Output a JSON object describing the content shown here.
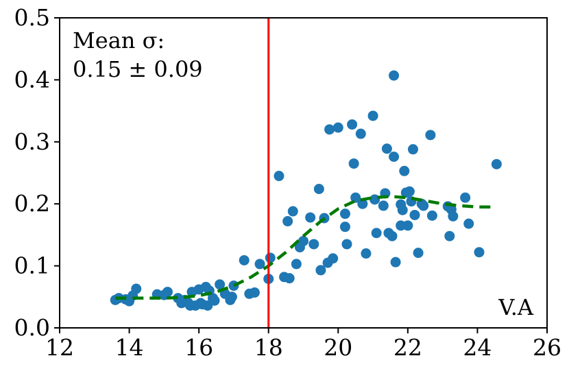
{
  "chart_data": {
    "type": "scatter",
    "title": "",
    "xlabel": "",
    "ylabel": "",
    "xlim": [
      12,
      26
    ],
    "ylim": [
      0.0,
      0.5
    ],
    "x_ticks": [
      12,
      14,
      16,
      18,
      20,
      22,
      24,
      26
    ],
    "x_tick_labels": [
      "12",
      "14",
      "16",
      "18",
      "20",
      "22",
      "24",
      "26"
    ],
    "y_ticks": [
      0.0,
      0.1,
      0.2,
      0.3,
      0.4,
      0.5
    ],
    "y_tick_labels": [
      "0.0",
      "0.1",
      "0.2",
      "0.3",
      "0.4",
      "0.5"
    ],
    "grid": false,
    "annotation_title": "Mean σ:",
    "annotation_value": "0.15 ± 0.09",
    "panel_label": "V.A",
    "vertical_line": {
      "x": 18.0,
      "color": "#ff0000"
    },
    "colors": {
      "points": "#1f77b4",
      "trend": "#007a00",
      "vline": "#ff0000"
    },
    "points": {
      "x": [
        13.6,
        13.7,
        13.9,
        14.0,
        14.1,
        14.2,
        14.8,
        15.0,
        15.1,
        15.4,
        15.5,
        15.6,
        15.7,
        15.75,
        15.8,
        15.9,
        16.0,
        16.05,
        16.1,
        16.2,
        16.25,
        16.3,
        16.4,
        16.45,
        16.6,
        16.75,
        16.9,
        16.95,
        17.0,
        17.3,
        17.45,
        17.6,
        17.75,
        18.0,
        18.05,
        18.3,
        18.45,
        18.55,
        18.6,
        18.7,
        18.8,
        18.9,
        19.0,
        19.2,
        19.3,
        19.45,
        19.5,
        19.6,
        19.7,
        19.75,
        19.85,
        20.0,
        20.2,
        20.2,
        20.25,
        20.4,
        20.45,
        20.5,
        20.65,
        20.7,
        20.8,
        21.0,
        21.05,
        21.1,
        21.3,
        21.35,
        21.4,
        21.45,
        21.55,
        21.6,
        21.6,
        21.65,
        21.8,
        21.8,
        21.85,
        21.9,
        21.95,
        22.0,
        22.05,
        22.1,
        22.15,
        22.2,
        22.3,
        22.4,
        22.45,
        22.65,
        22.7,
        23.15,
        23.2,
        23.25,
        23.3,
        23.65,
        23.75,
        24.05,
        24.55
      ],
      "y": [
        0.045,
        0.048,
        0.046,
        0.043,
        0.052,
        0.063,
        0.054,
        0.053,
        0.058,
        0.048,
        0.04,
        0.045,
        0.04,
        0.036,
        0.058,
        0.036,
        0.062,
        0.04,
        0.038,
        0.066,
        0.036,
        0.06,
        0.048,
        0.044,
        0.07,
        0.055,
        0.045,
        0.05,
        0.068,
        0.109,
        0.055,
        0.057,
        0.103,
        0.079,
        0.113,
        0.245,
        0.082,
        0.172,
        0.08,
        0.188,
        0.103,
        0.13,
        0.14,
        0.178,
        0.135,
        0.224,
        0.093,
        0.177,
        0.105,
        0.32,
        0.112,
        0.323,
        0.163,
        0.184,
        0.135,
        0.328,
        0.265,
        0.21,
        0.313,
        0.2,
        0.12,
        0.342,
        0.207,
        0.153,
        0.197,
        0.217,
        0.289,
        0.153,
        0.148,
        0.407,
        0.276,
        0.106,
        0.199,
        0.165,
        0.19,
        0.253,
        0.218,
        0.165,
        0.22,
        0.204,
        0.288,
        0.182,
        0.121,
        0.2,
        0.197,
        0.311,
        0.181,
        0.196,
        0.148,
        0.191,
        0.18,
        0.21,
        0.168,
        0.122,
        0.264
      ]
    },
    "trend": {
      "style": "dashed",
      "x": [
        13.6,
        14.0,
        14.5,
        15.0,
        15.5,
        16.0,
        16.5,
        17.0,
        17.5,
        18.0,
        18.5,
        19.0,
        19.5,
        20.0,
        20.5,
        21.0,
        21.5,
        22.0,
        22.5,
        23.0,
        23.5,
        24.0,
        24.5
      ],
      "y": [
        0.048,
        0.048,
        0.048,
        0.048,
        0.049,
        0.052,
        0.058,
        0.068,
        0.082,
        0.1,
        0.122,
        0.148,
        0.172,
        0.192,
        0.205,
        0.21,
        0.212,
        0.21,
        0.205,
        0.2,
        0.197,
        0.195,
        0.195
      ]
    }
  }
}
